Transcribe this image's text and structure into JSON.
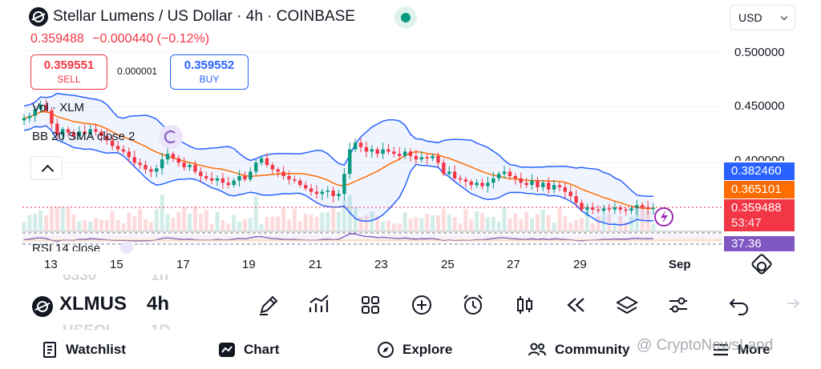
{
  "header": {
    "title": "Stellar Lumens / US Dollar · 4h · COINBASE",
    "last_price": "0.359488",
    "change": "−0.000440 (−0.12%)",
    "currency": "USD"
  },
  "trade": {
    "sell_price": "0.359551",
    "sell_label": "SELL",
    "spread": "0.000001",
    "buy_price": "0.359552",
    "buy_label": "BUY"
  },
  "indicators": {
    "volume": "Vol · XLM",
    "bollinger": "BB 20 SMA close 2",
    "rsi": "RSI 14 close"
  },
  "price_axis": [
    "0.500000",
    "0.450000",
    "0.400000"
  ],
  "tags": {
    "bb_upper": "0.382460",
    "bb_basis": "0.365101",
    "last_price": "0.359488",
    "countdown": "53:47",
    "rsi": "37.36"
  },
  "time_axis": [
    "13",
    "15",
    "17",
    "19",
    "21",
    "23",
    "25",
    "27",
    "29",
    "Sep"
  ],
  "footer": {
    "symbol": "XLMUS",
    "interval": "4h",
    "ghost_price": "6330",
    "ghost_interval": "1h",
    "ghost_symbol": "USEOL",
    "ghost_interval2": "1D"
  },
  "nav": {
    "watchlist": "Watchlist",
    "chart": "Chart",
    "explore": "Explore",
    "community": "Community",
    "more": "More"
  },
  "watermark": "@ CryptoNewsLand",
  "colors": {
    "up": "#089981",
    "down": "#f23645",
    "band": "#2962ff",
    "basis": "#ff6d00",
    "rsi": "#7e57c2"
  },
  "chart_data": {
    "type": "candlestick",
    "title": "Stellar Lumens / US Dollar · 4h · COINBASE",
    "interval": "4h",
    "x_ticks": [
      "13",
      "15",
      "17",
      "19",
      "21",
      "23",
      "25",
      "27",
      "29",
      "Sep"
    ],
    "y_ticks": [
      0.5,
      0.45,
      0.4
    ],
    "ylim": [
      0.34,
      0.52
    ],
    "last_price": 0.359488,
    "bb_upper_last": 0.38246,
    "bb_basis_last": 0.365101,
    "rsi_last": 37.36,
    "close_path": [
      0.44,
      0.442,
      0.448,
      0.452,
      0.447,
      0.435,
      0.425,
      0.43,
      0.427,
      0.424,
      0.428,
      0.426,
      0.43,
      0.428,
      0.424,
      0.42,
      0.415,
      0.412,
      0.41,
      0.405,
      0.4,
      0.398,
      0.394,
      0.392,
      0.395,
      0.403,
      0.408,
      0.404,
      0.4,
      0.396,
      0.398,
      0.392,
      0.388,
      0.386,
      0.384,
      0.386,
      0.382,
      0.38,
      0.384,
      0.388,
      0.385,
      0.392,
      0.4,
      0.404,
      0.398,
      0.394,
      0.392,
      0.388,
      0.385,
      0.384,
      0.38,
      0.377,
      0.374,
      0.372,
      0.374,
      0.375,
      0.37,
      0.372,
      0.39,
      0.412,
      0.418,
      0.414,
      0.41,
      0.412,
      0.408,
      0.412,
      0.41,
      0.408,
      0.406,
      0.41,
      0.406,
      0.403,
      0.405,
      0.404,
      0.406,
      0.4,
      0.39,
      0.392,
      0.386,
      0.385,
      0.383,
      0.38,
      0.382,
      0.379,
      0.382,
      0.386,
      0.39,
      0.392,
      0.388,
      0.386,
      0.382,
      0.38,
      0.384,
      0.378,
      0.382,
      0.376,
      0.38,
      0.378,
      0.374,
      0.37,
      0.364,
      0.358,
      0.36,
      0.358,
      0.357,
      0.359,
      0.358,
      0.36,
      0.358,
      0.357,
      0.359,
      0.362,
      0.36,
      0.359,
      0.3595
    ]
  }
}
